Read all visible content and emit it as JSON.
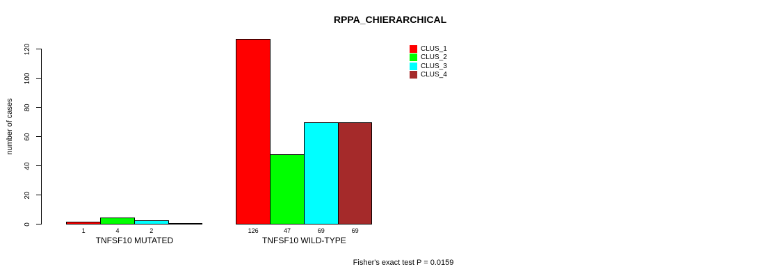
{
  "chart_data": {
    "type": "bar",
    "title": "RPPA_CHIERARCHICAL",
    "xlabel": "",
    "ylabel": "number of cases",
    "ylim": [
      0,
      126
    ],
    "y_ticks": [
      0,
      20,
      40,
      60,
      80,
      100,
      120
    ],
    "grid": false,
    "legend_position": "top-right",
    "categories": [
      "TNFSF10 MUTATED",
      "TNFSF10 WILD-TYPE"
    ],
    "series": [
      {
        "name": "CLUS_1",
        "color": "#ff0000",
        "values": [
          1,
          126
        ]
      },
      {
        "name": "CLUS_2",
        "color": "#00ff00",
        "values": [
          4,
          47
        ]
      },
      {
        "name": "CLUS_3",
        "color": "#00ffff",
        "values": [
          2,
          69
        ]
      },
      {
        "name": "CLUS_4",
        "color": "#a52a2a",
        "values": [
          0,
          69
        ]
      }
    ],
    "bar_border_color": "#000000",
    "bar_value_labels_shown": true,
    "zero_value_labels_hidden": true,
    "annotation": "Fisher's exact test P = 0.0159"
  }
}
